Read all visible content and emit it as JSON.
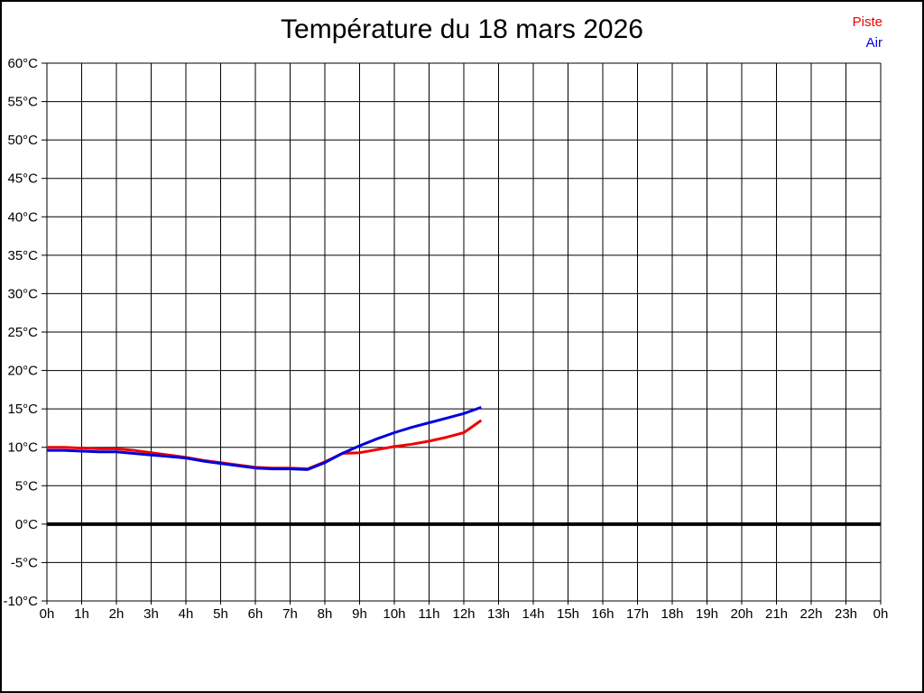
{
  "title": "Température du 18 mars 2026",
  "legend": {
    "items": [
      {
        "label": "Piste",
        "color": "#ee0000"
      },
      {
        "label": "Air",
        "color": "#0000dd"
      }
    ]
  },
  "chart_data": {
    "type": "line",
    "title": "Température du 18 mars 2026",
    "xlabel": "",
    "ylabel": "",
    "x_unit": "h",
    "y_unit": "°C",
    "xlim": [
      0,
      24
    ],
    "ylim": [
      -10,
      60
    ],
    "grid": true,
    "grid_color": "#000000",
    "axis_color": "#000000",
    "zero_line": {
      "value": 0,
      "color": "#000000",
      "width": 4
    },
    "legend_position": "top-right",
    "x_tick_values": [
      0,
      1,
      2,
      3,
      4,
      5,
      6,
      7,
      8,
      9,
      10,
      11,
      12,
      13,
      14,
      15,
      16,
      17,
      18,
      19,
      20,
      21,
      22,
      23,
      24
    ],
    "x_tick_labels": [
      "0h",
      "1h",
      "2h",
      "3h",
      "4h",
      "5h",
      "6h",
      "7h",
      "8h",
      "9h",
      "10h",
      "11h",
      "12h",
      "13h",
      "14h",
      "15h",
      "16h",
      "17h",
      "18h",
      "19h",
      "20h",
      "21h",
      "22h",
      "23h",
      "0h"
    ],
    "y_tick_values": [
      60,
      55,
      50,
      45,
      40,
      35,
      30,
      25,
      20,
      15,
      10,
      5,
      0,
      -5,
      -10
    ],
    "y_tick_labels": [
      "60°C",
      "55°C",
      "50°C",
      "45°C",
      "40°C",
      "35°C",
      "30°C",
      "25°C",
      "20°C",
      "15°C",
      "10°C",
      "5°C",
      "0°C",
      "-5°C",
      "-10°C"
    ],
    "x": [
      0,
      0.5,
      1,
      1.5,
      2,
      2.5,
      3,
      3.5,
      4,
      4.5,
      5,
      5.5,
      6,
      6.5,
      7,
      7.5,
      8,
      8.5,
      9,
      9.5,
      10,
      10.5,
      11,
      11.5,
      12,
      12.5
    ],
    "series": [
      {
        "name": "Piste",
        "color": "#ee0000",
        "values": [
          10.0,
          10.0,
          9.9,
          9.8,
          9.8,
          9.6,
          9.3,
          9.0,
          8.7,
          8.3,
          8.0,
          7.7,
          7.4,
          7.3,
          7.3,
          7.2,
          8.1,
          9.2,
          9.3,
          9.7,
          10.1,
          10.4,
          10.8,
          11.3,
          11.9,
          13.5
        ]
      },
      {
        "name": "Air",
        "color": "#0000dd",
        "values": [
          9.6,
          9.6,
          9.5,
          9.4,
          9.4,
          9.2,
          9.0,
          8.8,
          8.6,
          8.2,
          7.9,
          7.6,
          7.3,
          7.2,
          7.2,
          7.1,
          8.0,
          9.2,
          10.2,
          11.1,
          11.9,
          12.6,
          13.2,
          13.8,
          14.4,
          15.2
        ]
      }
    ]
  }
}
